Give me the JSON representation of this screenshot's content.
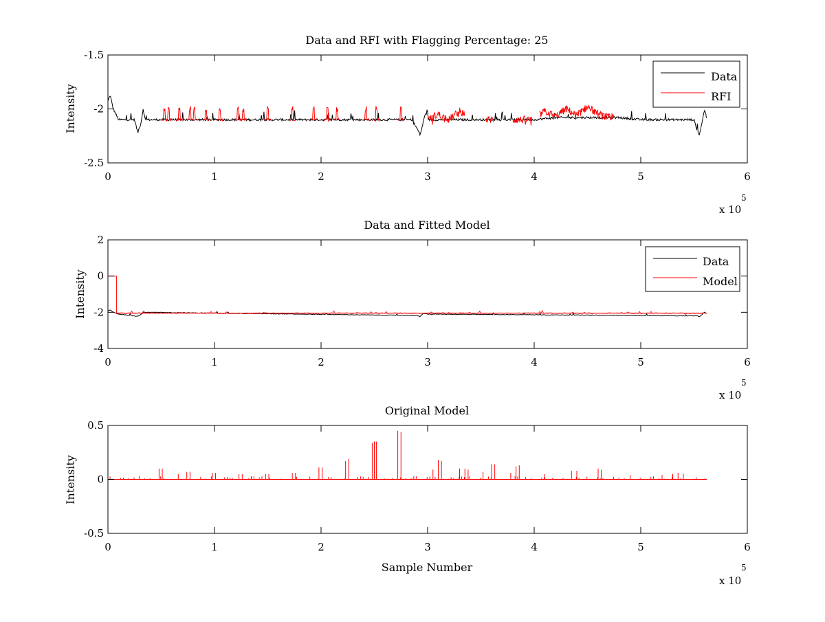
{
  "chart_data": [
    {
      "type": "line",
      "title": "Data and RFI with Flagging Percentage: 25",
      "xlabel": "",
      "ylabel": "Intensity",
      "xlim": [
        0,
        600000
      ],
      "ylim": [
        -2.5,
        -1.5
      ],
      "xticks": [
        "0",
        "1",
        "2",
        "3",
        "4",
        "5",
        "6"
      ],
      "yticks": [
        "-1.5",
        "-2",
        "-2.5"
      ],
      "x_multiplier_base": "x 10",
      "x_multiplier_exp": "5",
      "legend": "top-right",
      "grid": false,
      "series": [
        {
          "name": "Data",
          "color": "#000000",
          "x": [
            0,
            2000,
            5000,
            10000,
            20000,
            25000,
            28000,
            31000,
            33000,
            35000,
            60000,
            100000,
            150000,
            200000,
            250000,
            285000,
            290000,
            293000,
            296000,
            298000,
            300000,
            330000,
            360000,
            400000,
            420000,
            460000,
            480000,
            500000,
            540000,
            550000,
            553000,
            555000,
            558000,
            560000,
            562000
          ],
          "y": [
            -1.93,
            -1.87,
            -2.0,
            -2.1,
            -2.1,
            -2.1,
            -2.22,
            -2.13,
            -2.0,
            -2.1,
            -2.1,
            -2.1,
            -2.1,
            -2.1,
            -2.1,
            -2.1,
            -2.18,
            -2.24,
            -2.12,
            -2.03,
            -2.1,
            -2.1,
            -2.1,
            -2.1,
            -2.08,
            -2.08,
            -2.08,
            -2.1,
            -2.1,
            -2.1,
            -2.2,
            -2.24,
            -2.1,
            -2.0,
            -2.1
          ]
        },
        {
          "name": "RFI",
          "color": "#ff0000",
          "x": [
            300000,
            310000,
            320000,
            330000,
            340000,
            350000,
            400000,
            410000,
            420000,
            430000,
            440000,
            450000,
            460000,
            470000
          ],
          "y": [
            -2.1,
            -2.05,
            -2.1,
            -2.02,
            -2.08,
            -2.1,
            -2.1,
            -2.02,
            -2.07,
            -2.0,
            -2.06,
            -1.98,
            -2.05,
            -2.08
          ]
        }
      ],
      "series_label_data": "Data",
      "series_label_rfi": "RFI"
    },
    {
      "type": "line",
      "title": "Data and Fitted Model",
      "xlabel": "",
      "ylabel": "Intensity",
      "xlim": [
        0,
        600000
      ],
      "ylim": [
        -4,
        2
      ],
      "xticks": [
        "0",
        "1",
        "2",
        "3",
        "4",
        "5",
        "6"
      ],
      "yticks": [
        "2",
        "0",
        "-2",
        "-4"
      ],
      "x_multiplier_base": "x 10",
      "x_multiplier_exp": "5",
      "legend": "top-right",
      "grid": false,
      "series": [
        {
          "name": "Data",
          "color": "#000000",
          "x": [
            0,
            2000,
            5000,
            10000,
            28000,
            31000,
            33000,
            290000,
            293000,
            296000,
            300000,
            553000,
            555000,
            558000,
            560000,
            562000
          ],
          "y": [
            -1.93,
            -1.87,
            -2.0,
            -2.1,
            -2.22,
            -2.13,
            -2.0,
            -2.18,
            -2.24,
            -2.05,
            -2.1,
            -2.2,
            -2.24,
            -2.1,
            -2.0,
            -2.1
          ]
        },
        {
          "name": "Model",
          "color": "#ff0000",
          "x": [
            0,
            8000,
            8000,
            562000
          ],
          "y": [
            0,
            0,
            -2.05,
            -2.05
          ]
        }
      ],
      "series_label_data": "Data",
      "series_label_model": "Model"
    },
    {
      "type": "line",
      "title": "Original Model",
      "xlabel": "Sample Number",
      "ylabel": "Intensity",
      "xlim": [
        0,
        600000
      ],
      "ylim": [
        -0.5,
        0.5
      ],
      "xticks": [
        "0",
        "1",
        "2",
        "3",
        "4",
        "5",
        "6"
      ],
      "yticks": [
        "0.5",
        "0",
        "-0.5"
      ],
      "x_multiplier_base": "x 10",
      "x_multiplier_exp": "5",
      "grid": false,
      "baseline": 0,
      "spikes": {
        "color": "#ff0000",
        "x": [
          48000,
          51000,
          66000,
          74000,
          77000,
          98000,
          101000,
          123000,
          126000,
          148000,
          151000,
          173000,
          176000,
          198000,
          201000,
          223000,
          226000,
          248000,
          250000,
          252000,
          272000,
          275000,
          305000,
          310000,
          313000,
          330000,
          335000,
          338000,
          352000,
          360000,
          363000,
          378000,
          383000,
          386000,
          410000,
          435000,
          440000,
          460000,
          463000,
          490000,
          520000,
          530000,
          535000,
          540000
        ],
        "y": [
          0.1,
          0.1,
          0.05,
          0.07,
          0.07,
          0.06,
          0.06,
          0.05,
          0.05,
          0.05,
          0.05,
          0.06,
          0.06,
          0.11,
          0.11,
          0.17,
          0.19,
          0.34,
          0.35,
          0.35,
          0.45,
          0.44,
          0.09,
          0.18,
          0.17,
          0.1,
          0.1,
          0.09,
          0.07,
          0.14,
          0.14,
          0.06,
          0.12,
          0.13,
          0.05,
          0.08,
          0.08,
          0.1,
          0.09,
          0.04,
          0.04,
          0.05,
          0.06,
          0.05
        ]
      }
    }
  ]
}
